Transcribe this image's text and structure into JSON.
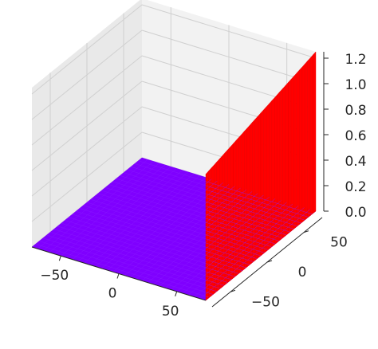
{
  "chart_data": {
    "type": "surface3d",
    "title": "",
    "xlabel": "",
    "ylabel": "",
    "zlabel": "",
    "x_ticks": [
      "−50",
      "0",
      "50"
    ],
    "y_ticks": [
      "−50",
      "0",
      "50"
    ],
    "z_ticks": [
      "0.0",
      "0.2",
      "0.4",
      "0.6",
      "0.8",
      "1.0",
      "1.2"
    ],
    "xlim": [
      -75,
      75
    ],
    "ylim": [
      -75,
      75
    ],
    "zlim": [
      0,
      1.25
    ],
    "grid": true,
    "colormap": "rainbow",
    "surface": {
      "description_values": {
        "floor_z": 0,
        "step_at_x": 75,
        "wall_z_at_y_min": 0.99,
        "wall_z_at_y_max": 1.25
      },
      "colors": {
        "low": "#7f00ff",
        "high": "#ff0000"
      }
    },
    "pane_colors": {
      "back": "#f2f2f2",
      "side": "#e9e9e9",
      "floor": "#e4e4e4"
    }
  }
}
